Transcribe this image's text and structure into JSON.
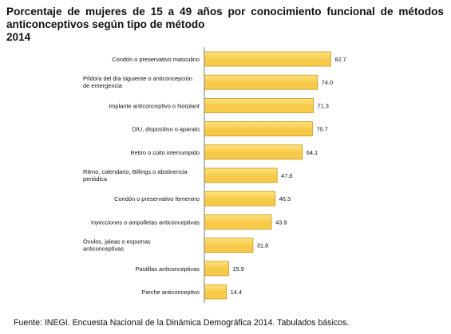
{
  "header": {
    "title_line1": "Porcentaje de mujeres de 15 a 49 años por conocimiento funcional de métodos",
    "title_line2": "anticonceptivos según tipo de método",
    "title_line3": "2014"
  },
  "footer": {
    "source": "Fuente: INEGI. Encuesta Nacional de la Dinámica Demográfica 2014. Tabulados básicos."
  },
  "colors": {
    "bar_fill": "#f7c948",
    "bar_fill_light": "#fde27e",
    "bar_edge": "#c9981a",
    "axis": "#7a7a7a"
  },
  "chart_data": {
    "type": "bar",
    "orientation": "horizontal",
    "categories": [
      [
        "Condón o preservativo masculino"
      ],
      [
        "Píldora del día siguiente o anticoncepción",
        "de emergencia"
      ],
      [
        "Implante anticonceptivo o Norplant"
      ],
      [
        "DIU, dispositivo o aparato"
      ],
      [
        "Retiro o coito interrumpido"
      ],
      [
        "Ritmo, calendario, Billings o abstinencia",
        "periódica"
      ],
      [
        "Condón o preservativo femenino"
      ],
      [
        "Inyecciones o ampolletas anticonceptivas"
      ],
      [
        "Óvulos, jaleas o espumas",
        "anticonceptivas"
      ],
      [
        "Pastillas anticonceptivas"
      ],
      [
        "Parche anticonceptivo"
      ]
    ],
    "values": [
      82.7,
      74.0,
      71.3,
      70.7,
      64.1,
      47.6,
      46.3,
      43.9,
      31.8,
      15.9,
      14.4
    ],
    "value_labels": [
      "82.7",
      "74.0",
      "71.3",
      "70.7",
      "64.1",
      "47.6",
      "46.3",
      "43.9",
      "31.8",
      "15.9",
      "14.4"
    ],
    "xlim": [
      0,
      100
    ],
    "grid": false,
    "legend": false
  }
}
